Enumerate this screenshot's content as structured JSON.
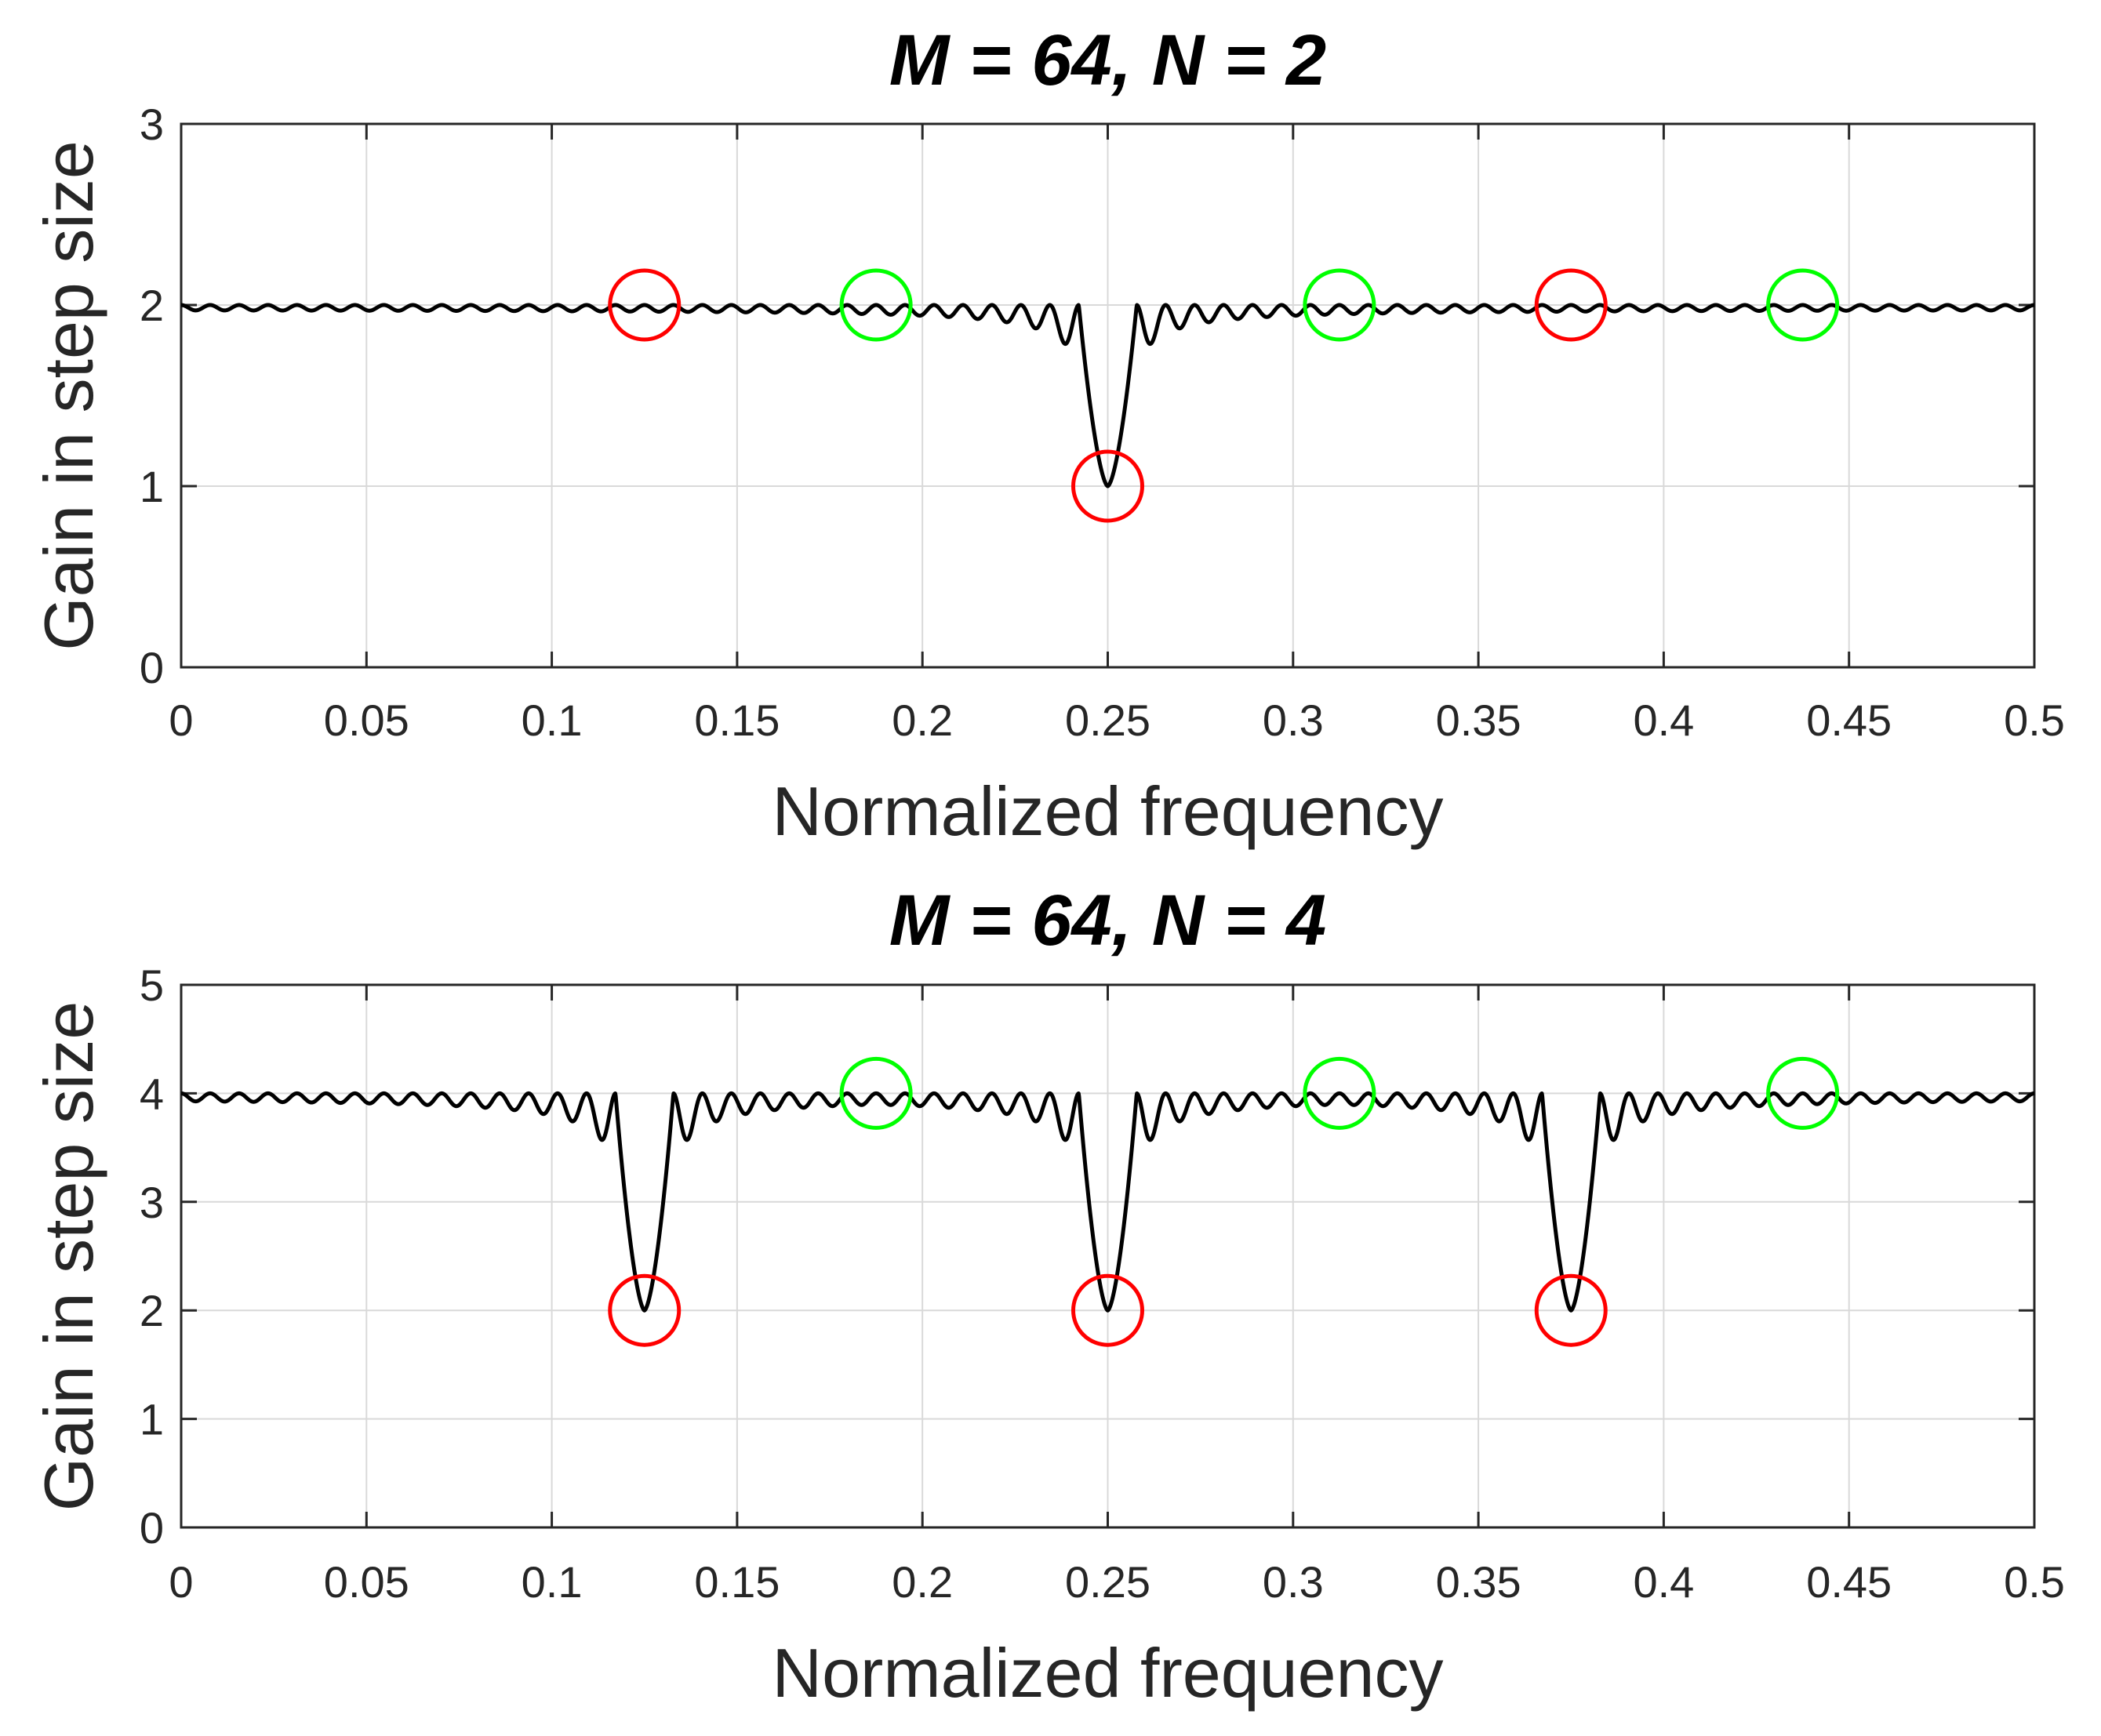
{
  "chart_data": [
    {
      "type": "line",
      "title": "M = 64, N = 2",
      "xlabel": "Normalized frequency",
      "ylabel": "Gain in step size",
      "xlim": [
        0,
        0.5
      ],
      "ylim": [
        0,
        3
      ],
      "xticks": [
        0,
        0.05,
        0.1,
        0.15,
        0.2,
        0.25,
        0.3,
        0.35,
        0.4,
        0.45,
        0.5
      ],
      "xtick_labels": [
        "0",
        "0.05",
        "0.1",
        "0.15",
        "0.2",
        "0.25",
        "0.3",
        "0.35",
        "0.4",
        "0.45",
        "0.5"
      ],
      "yticks": [
        0,
        1,
        2,
        3
      ],
      "ytick_labels": [
        "0",
        "1",
        "2",
        "3"
      ],
      "grid": true,
      "series": [
        {
          "name": "gain",
          "color": "#000000",
          "baseline": 2,
          "dips": [
            {
              "x": 0.25,
              "y": 1
            }
          ],
          "ripple_period": 0.0078125
        }
      ],
      "markers": [
        {
          "x": 0.125,
          "y": 2,
          "color": "#ff0000"
        },
        {
          "x": 0.1875,
          "y": 2,
          "color": "#00ff00"
        },
        {
          "x": 0.25,
          "y": 1,
          "color": "#ff0000"
        },
        {
          "x": 0.3125,
          "y": 2,
          "color": "#00ff00"
        },
        {
          "x": 0.375,
          "y": 2,
          "color": "#ff0000"
        },
        {
          "x": 0.4375,
          "y": 2,
          "color": "#00ff00"
        }
      ]
    },
    {
      "type": "line",
      "title": "M = 64, N = 4",
      "xlabel": "Normalized frequency",
      "ylabel": "Gain in step size",
      "xlim": [
        0,
        0.5
      ],
      "ylim": [
        0,
        5
      ],
      "xticks": [
        0,
        0.05,
        0.1,
        0.15,
        0.2,
        0.25,
        0.3,
        0.35,
        0.4,
        0.45,
        0.5
      ],
      "xtick_labels": [
        "0",
        "0.05",
        "0.1",
        "0.15",
        "0.2",
        "0.25",
        "0.3",
        "0.35",
        "0.4",
        "0.45",
        "0.5"
      ],
      "yticks": [
        0,
        1,
        2,
        3,
        4,
        5
      ],
      "ytick_labels": [
        "0",
        "1",
        "2",
        "3",
        "4",
        "5"
      ],
      "grid": true,
      "series": [
        {
          "name": "gain",
          "color": "#000000",
          "baseline": 4,
          "dips": [
            {
              "x": 0.125,
              "y": 2
            },
            {
              "x": 0.25,
              "y": 2
            },
            {
              "x": 0.375,
              "y": 2
            }
          ],
          "ripple_period": 0.0078125
        }
      ],
      "markers": [
        {
          "x": 0.125,
          "y": 2,
          "color": "#ff0000"
        },
        {
          "x": 0.1875,
          "y": 4,
          "color": "#00ff00"
        },
        {
          "x": 0.25,
          "y": 2,
          "color": "#ff0000"
        },
        {
          "x": 0.3125,
          "y": 4,
          "color": "#00ff00"
        },
        {
          "x": 0.375,
          "y": 2,
          "color": "#ff0000"
        },
        {
          "x": 0.4375,
          "y": 4,
          "color": "#00ff00"
        }
      ]
    }
  ]
}
